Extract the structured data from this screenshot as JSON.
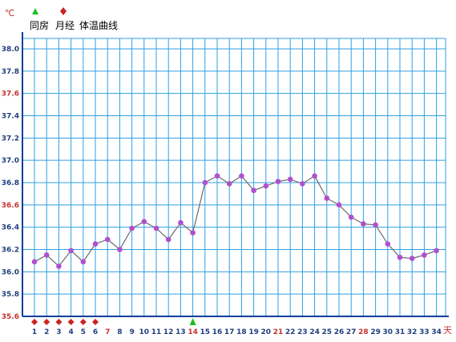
{
  "chart_data": {
    "type": "line",
    "title": "",
    "xlabel": "天",
    "ylabel": "℃",
    "ylim": [
      35.6,
      38.0
    ],
    "y_tick_step": 0.2,
    "xlim": [
      1,
      34
    ],
    "grid": true,
    "legend": [
      {
        "label": "同房",
        "marker": "green-triangle"
      },
      {
        "label": "月经",
        "marker": "red-diamond"
      },
      {
        "label": "体温曲线",
        "marker": "line"
      }
    ],
    "highlight_y_ticks": [
      "37.6",
      "36.6",
      "35.6"
    ],
    "highlight_x_ticks": [
      7,
      14,
      21,
      28
    ],
    "series": [
      {
        "name": "体温曲线",
        "x": [
          1,
          2,
          3,
          4,
          5,
          6,
          7,
          8,
          9,
          10,
          11,
          12,
          13,
          14,
          15,
          16,
          17,
          18,
          19,
          20,
          21,
          22,
          23,
          24,
          25,
          26,
          27,
          28,
          29,
          30,
          31,
          32,
          33,
          34
        ],
        "y": [
          36.09,
          36.15,
          36.05,
          36.19,
          36.09,
          36.25,
          36.29,
          36.2,
          36.39,
          36.45,
          36.39,
          36.29,
          36.44,
          36.35,
          36.8,
          36.86,
          36.79,
          36.86,
          36.73,
          36.77,
          36.81,
          36.83,
          36.79,
          36.86,
          36.66,
          36.6,
          36.49,
          36.43,
          36.42,
          36.25,
          36.13,
          36.12,
          36.15,
          36.19
        ]
      }
    ],
    "menstruation_days": [
      1,
      2,
      3,
      4,
      5,
      6
    ],
    "intercourse_days": [
      14
    ]
  },
  "colors": {
    "grid": "#2f9fe0",
    "axis": "#0a3f9c",
    "line": "#6a6a6a",
    "point": "#b04fd0",
    "tick_normal": "#1f3f7f",
    "tick_highlight": "#c83030",
    "menstruation": "#cc2222",
    "intercourse": "#22bb22"
  },
  "legend_labels": {
    "intercourse": "同房",
    "menstruation": "月经",
    "curve": "体温曲线"
  }
}
